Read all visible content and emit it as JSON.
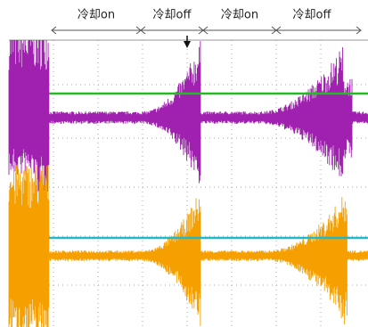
{
  "annotations": [
    {
      "label": "冷却on"
    },
    {
      "label": "冷却off"
    },
    {
      "label": "冷却on"
    },
    {
      "label": "冷却off"
    }
  ]
}
